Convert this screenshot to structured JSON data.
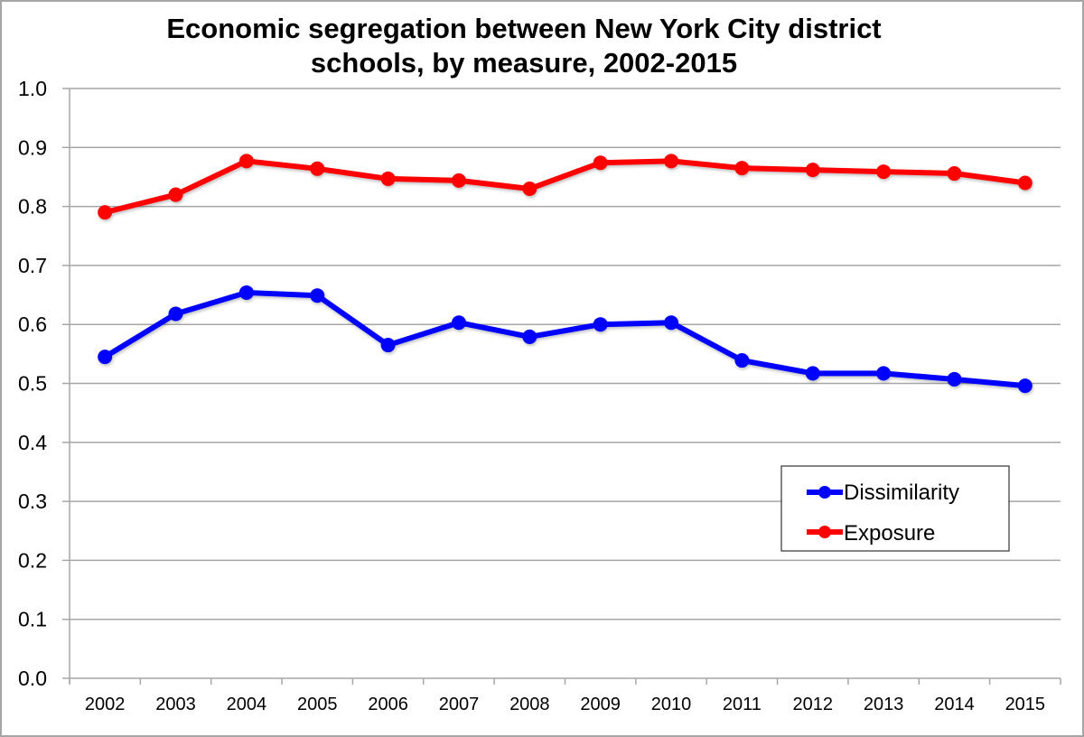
{
  "chart_data": {
    "type": "line",
    "title_lines": [
      "Economic segregation between New York City district",
      "schools, by measure, 2002-2015"
    ],
    "xlabel": "",
    "ylabel": "",
    "ylim": [
      0.0,
      1.0
    ],
    "yticks": [
      "0.0",
      "0.1",
      "0.2",
      "0.3",
      "0.4",
      "0.5",
      "0.6",
      "0.7",
      "0.8",
      "0.9",
      "1.0"
    ],
    "grid": true,
    "legend_position": "lower-right",
    "categories": [
      "2002",
      "2003",
      "2004",
      "2005",
      "2006",
      "2007",
      "2008",
      "2009",
      "2010",
      "2011",
      "2012",
      "2013",
      "2014",
      "2015"
    ],
    "series": [
      {
        "name": "Dissimilarity",
        "color": "#0000ff",
        "values": [
          0.545,
          0.618,
          0.654,
          0.649,
          0.565,
          0.603,
          0.579,
          0.6,
          0.603,
          0.539,
          0.517,
          0.517,
          0.507,
          0.496
        ]
      },
      {
        "name": "Exposure",
        "color": "#ff0000",
        "values": [
          0.79,
          0.82,
          0.877,
          0.864,
          0.847,
          0.844,
          0.83,
          0.874,
          0.877,
          0.865,
          0.862,
          0.859,
          0.856,
          0.84
        ]
      }
    ]
  }
}
